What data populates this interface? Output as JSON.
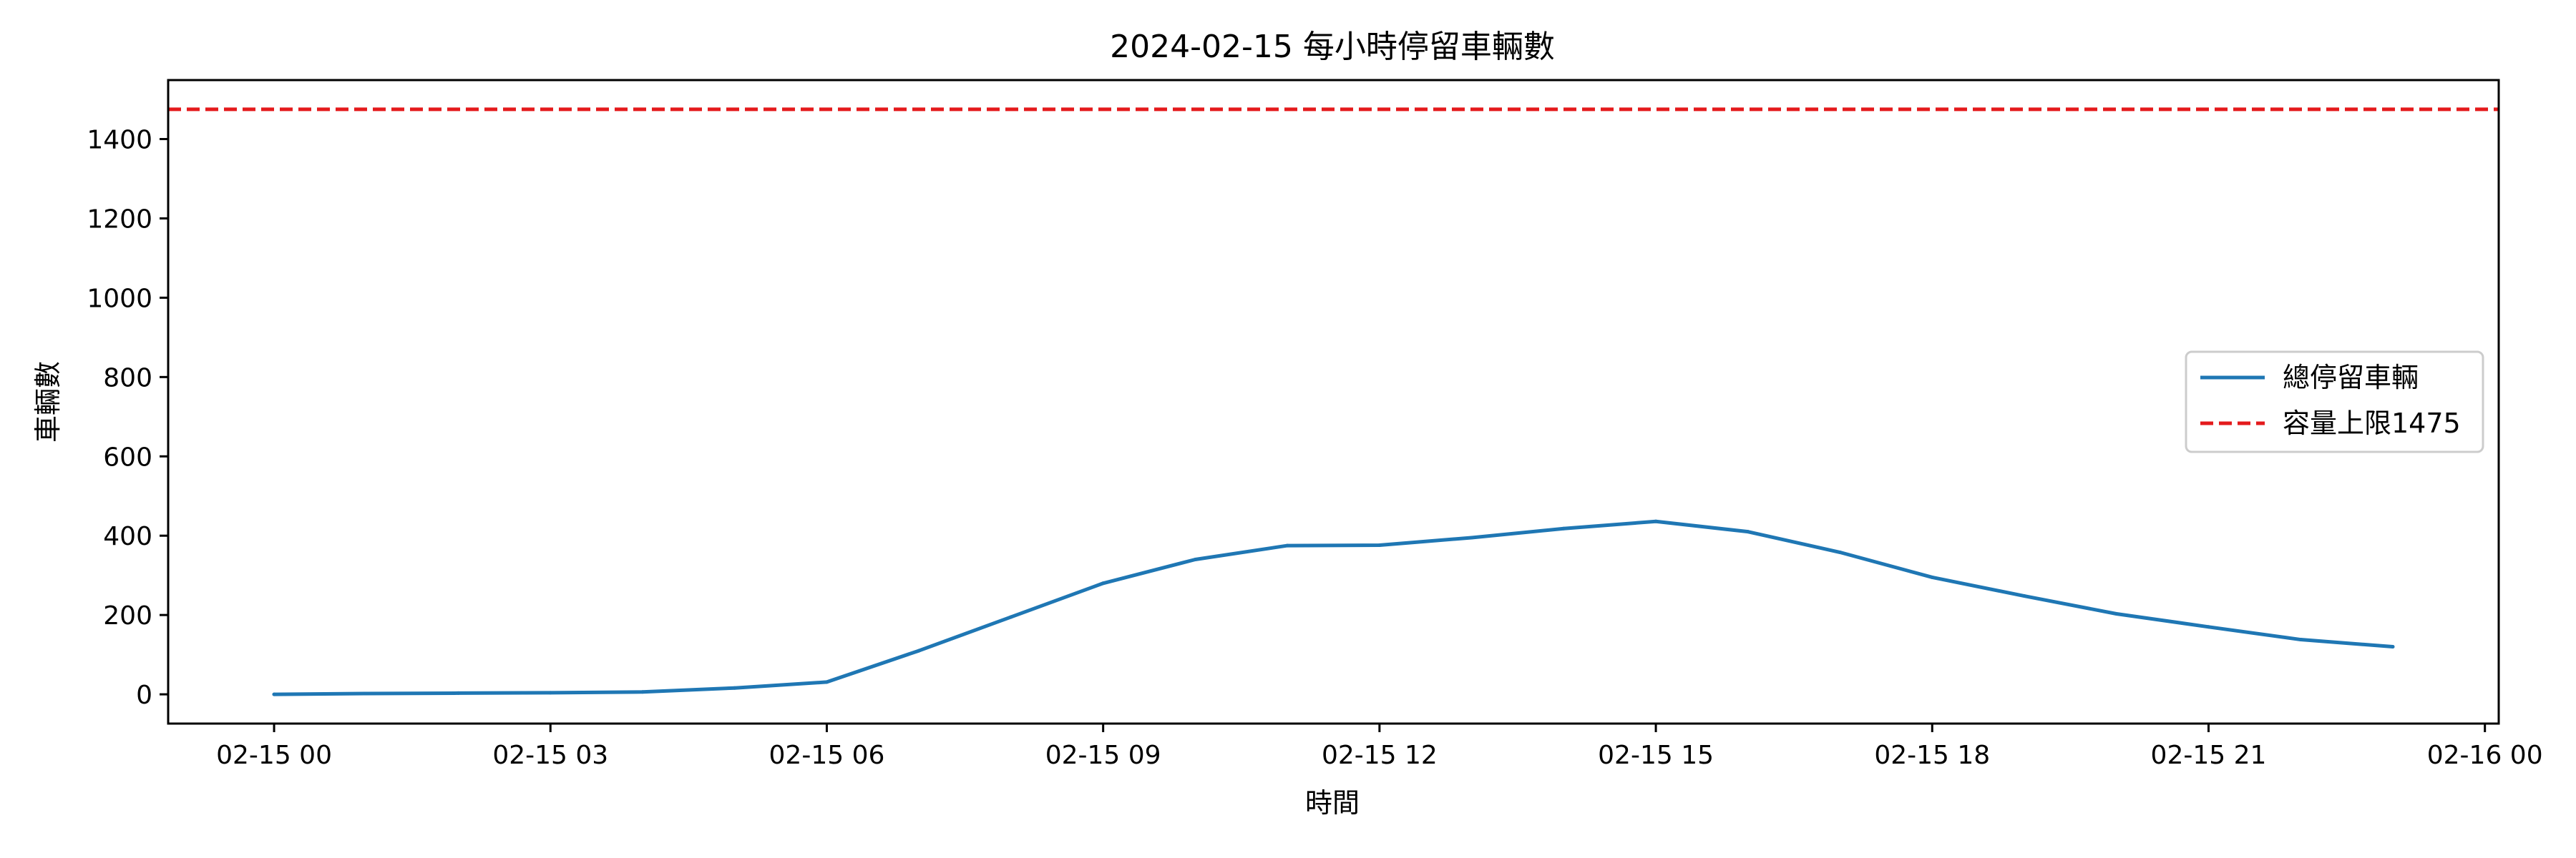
{
  "chart_data": {
    "type": "line",
    "title": "2024-02-15 每小時停留車輛數",
    "xlabel": "時間",
    "ylabel": "車輛數",
    "x": [
      "02-15 00",
      "02-15 01",
      "02-15 02",
      "02-15 03",
      "02-15 04",
      "02-15 05",
      "02-15 06",
      "02-15 07",
      "02-15 08",
      "02-15 09",
      "02-15 10",
      "02-15 11",
      "02-15 12",
      "02-15 13",
      "02-15 14",
      "02-15 15",
      "02-15 16",
      "02-15 17",
      "02-15 18",
      "02-15 19",
      "02-15 20",
      "02-15 21",
      "02-15 22",
      "02-15 23"
    ],
    "x_hours": [
      0,
      1,
      2,
      3,
      4,
      5,
      6,
      7,
      8,
      9,
      10,
      11,
      12,
      13,
      14,
      15,
      16,
      17,
      18,
      19,
      20,
      21,
      22,
      23
    ],
    "series": [
      {
        "name": "總停留車輛",
        "color": "#1f77b4",
        "style": "solid",
        "values": [
          0,
          2,
          3,
          4,
          6,
          16,
          31,
          110,
          195,
          280,
          340,
          375,
          376,
          395,
          418,
          436,
          410,
          358,
          295,
          248,
          203,
          170,
          138,
          120
        ]
      }
    ],
    "reference_line": {
      "name": "容量上限1475",
      "value": 1475,
      "color": "#e41a1c",
      "style": "dashed"
    },
    "xticks": [
      "02-15 00",
      "02-15 03",
      "02-15 06",
      "02-15 09",
      "02-15 12",
      "02-15 15",
      "02-15 18",
      "02-15 21",
      "02-16 00"
    ],
    "xtick_hours": [
      0,
      3,
      6,
      9,
      12,
      15,
      18,
      21,
      24
    ],
    "xlim_hours": [
      -1.15,
      24.15
    ],
    "yticks": [
      0,
      200,
      400,
      600,
      800,
      1000,
      1200,
      1400
    ],
    "ylim": [
      -73.75,
      1548.75
    ],
    "legend_position": "center-right",
    "grid": false
  }
}
